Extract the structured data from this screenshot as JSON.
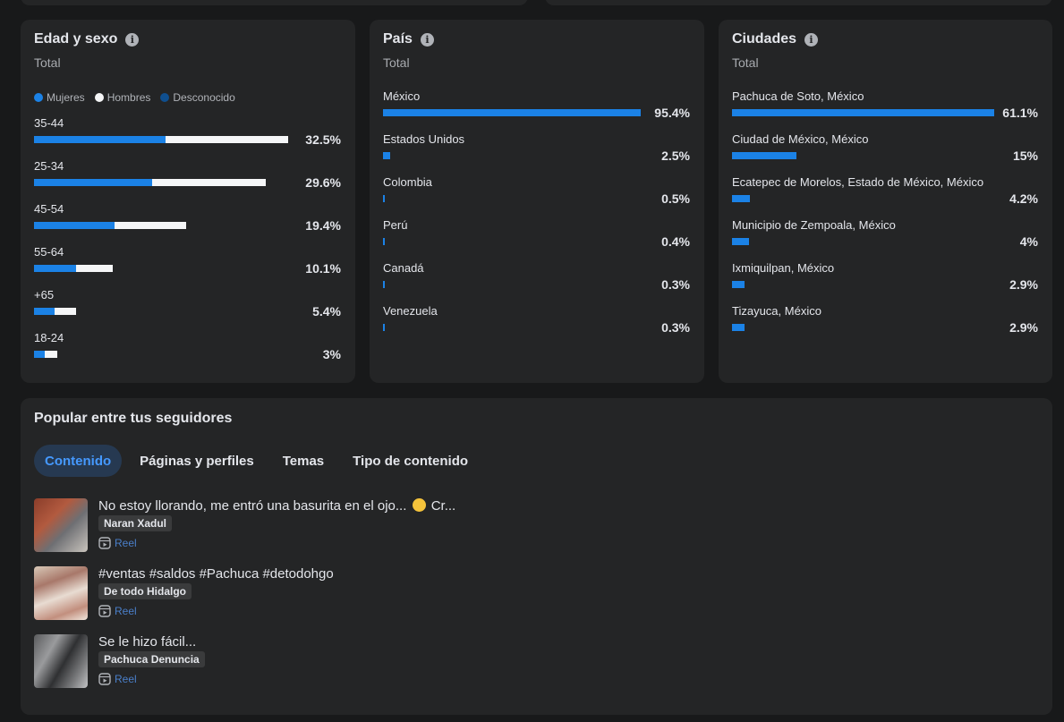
{
  "colors": {
    "women": "#1b82e6",
    "men": "#f5f6f7",
    "unknown": "#0f4f8f",
    "accent": "#1b82e6"
  },
  "age_sex": {
    "title": "Edad y sexo",
    "subtitle": "Total",
    "legend": [
      "Mujeres",
      "Hombres",
      "Desconocido"
    ],
    "rows": [
      {
        "label": "35-44",
        "pct": "32.5%",
        "women": 16.8,
        "men": 15.7
      },
      {
        "label": "25-34",
        "pct": "29.6%",
        "women": 15.1,
        "men": 14.5
      },
      {
        "label": "45-54",
        "pct": "19.4%",
        "women": 10.3,
        "men": 9.1
      },
      {
        "label": "55-64",
        "pct": "10.1%",
        "women": 5.4,
        "men": 4.7
      },
      {
        "label": "+65",
        "pct": "5.4%",
        "women": 2.6,
        "men": 2.8
      },
      {
        "label": "18-24",
        "pct": "3%",
        "women": 1.4,
        "men": 1.6
      }
    ]
  },
  "country": {
    "title": "País",
    "subtitle": "Total",
    "rows": [
      {
        "label": "México",
        "pct": "95.4%",
        "value": 95.4
      },
      {
        "label": "Estados Unidos",
        "pct": "2.5%",
        "value": 2.5
      },
      {
        "label": "Colombia",
        "pct": "0.5%",
        "value": 0.5
      },
      {
        "label": "Perú",
        "pct": "0.4%",
        "value": 0.4
      },
      {
        "label": "Canadá",
        "pct": "0.3%",
        "value": 0.3
      },
      {
        "label": "Venezuela",
        "pct": "0.3%",
        "value": 0.3
      }
    ]
  },
  "cities": {
    "title": "Ciudades",
    "subtitle": "Total",
    "rows": [
      {
        "label": "Pachuca de Soto, México",
        "pct": "61.1%",
        "value": 61.1
      },
      {
        "label": "Ciudad de México, México",
        "pct": "15%",
        "value": 15
      },
      {
        "label": "Ecatepec de Morelos, Estado de México, México",
        "pct": "4.2%",
        "value": 4.2
      },
      {
        "label": "Municipio de Zempoala, México",
        "pct": "4%",
        "value": 4
      },
      {
        "label": "Ixmiquilpan, México",
        "pct": "2.9%",
        "value": 2.9
      },
      {
        "label": "Tizayuca, México",
        "pct": "2.9%",
        "value": 2.9
      }
    ]
  },
  "popular": {
    "title": "Popular entre tus seguidores",
    "tabs": [
      "Contenido",
      "Páginas y perfiles",
      "Temas",
      "Tipo de contenido"
    ],
    "active_tab": 0,
    "posts": [
      {
        "text": "No estoy llorando, me entró una basurita en el ojo...",
        "text_tail": "Cr...",
        "has_emoji": true,
        "author": "Naran Xadul",
        "type": "Reel"
      },
      {
        "text": "#ventas #saldos #Pachuca #detodohgo",
        "text_tail": "",
        "has_emoji": false,
        "author": "De todo Hidalgo",
        "type": "Reel"
      },
      {
        "text": "Se le hizo fácil...",
        "text_tail": "",
        "has_emoji": false,
        "author": "Pachuca Denuncia",
        "type": "Reel"
      }
    ]
  }
}
